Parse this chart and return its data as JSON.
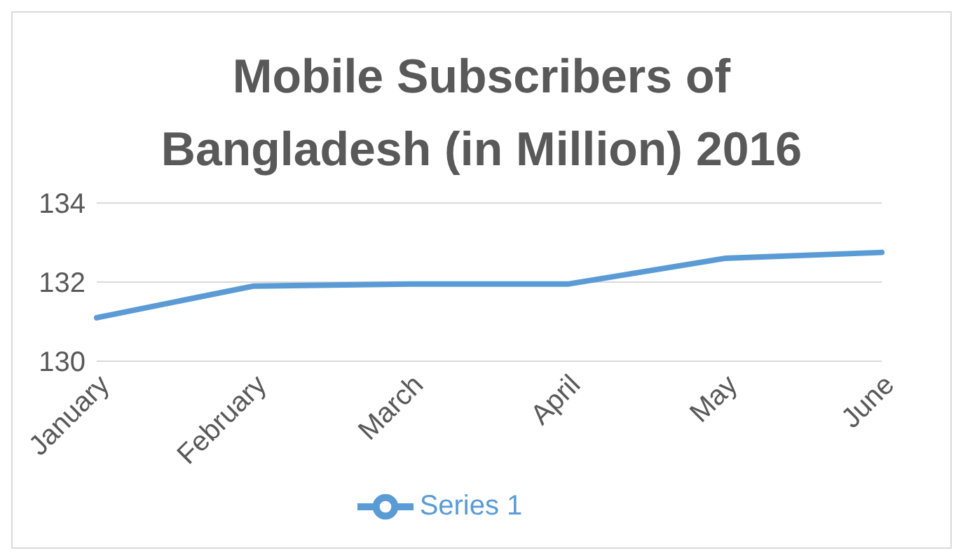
{
  "chart_data": {
    "type": "line",
    "title": "Mobile Subscribers of Bangladesh (in Million) 2016",
    "categories": [
      "January",
      "February",
      "March",
      "April",
      "May",
      "June"
    ],
    "series": [
      {
        "name": "Series 1",
        "color": "#5b9bd5",
        "values": [
          131.1,
          131.9,
          131.95,
          131.95,
          132.6,
          132.75
        ]
      }
    ],
    "ylim": [
      130,
      134
    ],
    "yticks": [
      130,
      132,
      134
    ],
    "grid": "y",
    "legend": "bottom",
    "marker": "none",
    "line_style": "solid"
  }
}
